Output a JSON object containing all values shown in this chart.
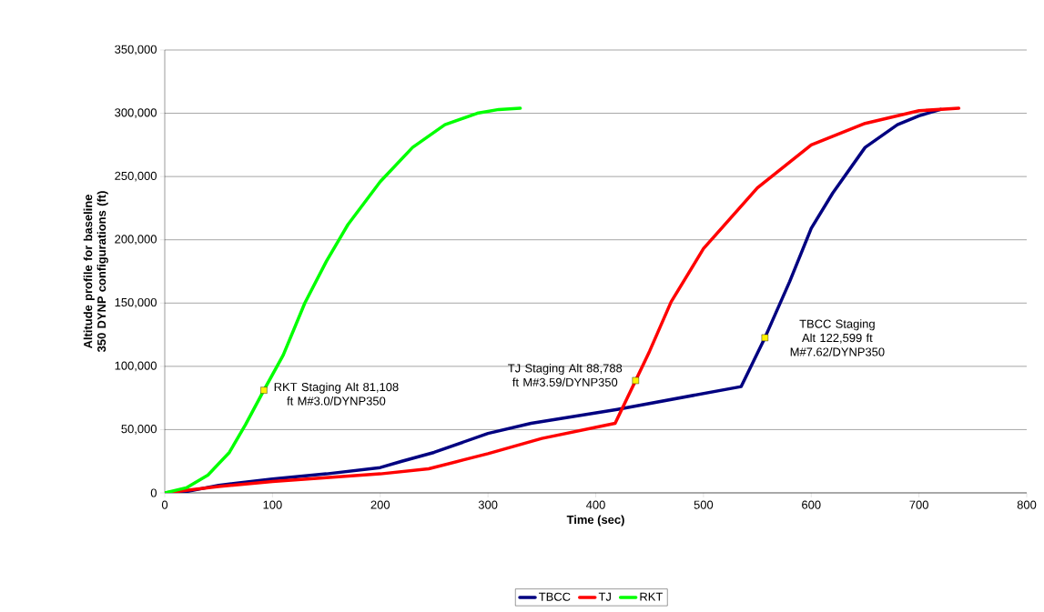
{
  "chart_data": {
    "type": "line",
    "xlabel": "Time (sec)",
    "ylabel": "Altitude profile for baseline 350 DYNP configurations (ft)",
    "xlim": [
      0,
      800
    ],
    "xticks": [
      0,
      100,
      200,
      300,
      400,
      500,
      600,
      700,
      800
    ],
    "ylim": [
      0,
      350000
    ],
    "yticks": [
      {
        "value": 0,
        "label": "0"
      },
      {
        "value": 50000,
        "label": "50,000"
      },
      {
        "value": 100000,
        "label": "100,000"
      },
      {
        "value": 150000,
        "label": "150,000"
      },
      {
        "value": 200000,
        "label": "200,000"
      },
      {
        "value": 250000,
        "label": "250,000"
      },
      {
        "value": 300000,
        "label": "300,000"
      },
      {
        "value": 350000,
        "label": "350,000"
      }
    ],
    "grid": "y",
    "legend": "bottom",
    "series": [
      {
        "name": "TBCC",
        "color": "#000080",
        "x": [
          0,
          20,
          50,
          100,
          150,
          200,
          220,
          250,
          300,
          340,
          420,
          535,
          557,
          580,
          600,
          620,
          650,
          680,
          700,
          720
        ],
        "values": [
          0,
          1000,
          6000,
          11000,
          15000,
          20000,
          25000,
          32000,
          47000,
          55000,
          66000,
          84000,
          122599,
          167000,
          209000,
          237000,
          273000,
          291000,
          298000,
          303000
        ]
      },
      {
        "name": "TJ",
        "color": "#ff0000",
        "x": [
          0,
          50,
          100,
          150,
          200,
          245,
          300,
          350,
          418,
          437,
          450,
          470,
          500,
          550,
          600,
          650,
          700,
          737
        ],
        "values": [
          0,
          5000,
          9000,
          12000,
          15000,
          19000,
          31000,
          43000,
          55000,
          88788,
          112000,
          151000,
          193000,
          241000,
          275000,
          292000,
          302000,
          304000
        ]
      },
      {
        "name": "RKT",
        "color": "#00ff00",
        "x": [
          0,
          20,
          40,
          60,
          75,
          92,
          110,
          130,
          150,
          170,
          200,
          230,
          260,
          290,
          310,
          330
        ],
        "values": [
          0,
          4000,
          14000,
          32000,
          54000,
          81108,
          109000,
          150000,
          183000,
          212000,
          246000,
          273000,
          291000,
          300000,
          303000,
          304000
        ]
      }
    ],
    "annotations": [
      {
        "text": "RKT Staging Alt 81,108 ft M#3.0/DYNP350",
        "x": 92,
        "y": 81108
      },
      {
        "text": "TJ Staging Alt 88,788 ft M#3.59/DYNP350",
        "x": 437,
        "y": 88788
      },
      {
        "text": "TBCC Staging Alt 122,599 ft M#7.62/DYNP350",
        "x": 557,
        "y": 122599
      }
    ]
  }
}
